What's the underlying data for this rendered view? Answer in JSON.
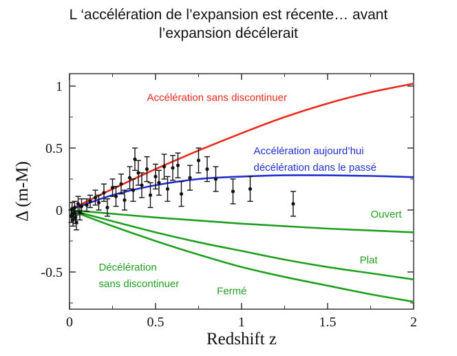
{
  "title_lines": [
    "L ‘accélération de l’expansion est récente… avant",
    "l’expansion décélerait"
  ],
  "chart_data": {
    "type": "scatter",
    "xlabel": "Redshift z",
    "ylabel": "Δ (m-M)",
    "xlim": [
      0,
      2
    ],
    "ylim": [
      -0.8,
      1.1
    ],
    "x_ticks": [
      0,
      0.5,
      1,
      1.5,
      2
    ],
    "x_tick_labels": [
      "0",
      "0.5",
      "1",
      "1.5",
      "2"
    ],
    "y_ticks": [
      1,
      0.5,
      0,
      -0.5
    ],
    "y_tick_labels": [
      "1",
      "0.5",
      "0",
      "-0.5"
    ],
    "grid": false,
    "legend": "none",
    "colors": {
      "red": "#e8291c",
      "blue": "#1f2fcf",
      "green": "#1f9e1f",
      "points": "#111111"
    },
    "series": [
      {
        "kind": "curve",
        "color": "red",
        "x": [
          0,
          0.25,
          0.5,
          0.75,
          1.0,
          1.25,
          1.5,
          1.75,
          2.0
        ],
        "y": [
          0,
          0.17,
          0.33,
          0.48,
          0.62,
          0.75,
          0.86,
          0.95,
          1.02
        ]
      },
      {
        "kind": "curve",
        "color": "blue",
        "x": [
          0,
          0.25,
          0.5,
          0.75,
          1.0,
          1.25,
          1.5,
          1.75,
          2.0
        ],
        "y": [
          0,
          0.12,
          0.2,
          0.25,
          0.27,
          0.28,
          0.28,
          0.275,
          0.265
        ]
      },
      {
        "kind": "curve",
        "color": "green",
        "x": [
          0,
          0.25,
          0.5,
          0.75,
          1.0,
          1.25,
          1.5,
          1.75,
          2.0
        ],
        "y": [
          0,
          -0.03,
          -0.06,
          -0.085,
          -0.11,
          -0.13,
          -0.15,
          -0.165,
          -0.18
        ]
      },
      {
        "kind": "curve",
        "color": "green",
        "x": [
          0,
          0.25,
          0.5,
          0.75,
          1.0,
          1.25,
          1.5,
          1.75,
          2.0
        ],
        "y": [
          0,
          -0.09,
          -0.18,
          -0.26,
          -0.33,
          -0.4,
          -0.46,
          -0.51,
          -0.56
        ]
      },
      {
        "kind": "curve",
        "color": "green",
        "x": [
          0,
          0.25,
          0.5,
          0.75,
          1.0,
          1.25,
          1.5,
          1.75,
          2.0
        ],
        "y": [
          0,
          -0.13,
          -0.25,
          -0.36,
          -0.46,
          -0.54,
          -0.61,
          -0.68,
          -0.74
        ]
      },
      {
        "kind": "points",
        "color": "points",
        "x": [
          0.01,
          0.015,
          0.02,
          0.025,
          0.03,
          0.035,
          0.04,
          0.05,
          0.06,
          0.07,
          0.1,
          0.12,
          0.15,
          0.17,
          0.2,
          0.22,
          0.25,
          0.27,
          0.3,
          0.32,
          0.35,
          0.37,
          0.38,
          0.4,
          0.42,
          0.45,
          0.47,
          0.5,
          0.52,
          0.55,
          0.57,
          0.6,
          0.63,
          0.65,
          0.7,
          0.75,
          0.8,
          0.85,
          0.95,
          1.05,
          1.3
        ],
        "y": [
          -0.05,
          0.01,
          -0.08,
          -0.03,
          0.02,
          -0.06,
          -0.1,
          0.05,
          -0.02,
          0.03,
          0.04,
          0.07,
          0.1,
          0.06,
          0.14,
          0.02,
          0.18,
          0.11,
          0.21,
          0.08,
          0.26,
          0.16,
          0.41,
          0.3,
          0.2,
          0.33,
          0.12,
          0.27,
          0.22,
          0.35,
          0.17,
          0.34,
          0.36,
          0.13,
          0.26,
          0.4,
          0.33,
          0.25,
          0.15,
          0.17,
          0.05
        ],
        "err": [
          0.05,
          0.05,
          0.05,
          0.05,
          0.05,
          0.05,
          0.06,
          0.06,
          0.06,
          0.06,
          0.05,
          0.05,
          0.06,
          0.06,
          0.07,
          0.07,
          0.07,
          0.08,
          0.08,
          0.08,
          0.09,
          0.09,
          0.09,
          0.1,
          0.1,
          0.1,
          0.1,
          0.1,
          0.1,
          0.1,
          0.1,
          0.1,
          0.1,
          0.1,
          0.1,
          0.1,
          0.1,
          0.1,
          0.1,
          0.1,
          0.1
        ]
      }
    ],
    "annotations": [
      {
        "lines": [
          "Accélération sans discontinuer"
        ],
        "color": "red",
        "x": 0.45,
        "y": 0.88,
        "anchor": "start"
      },
      {
        "lines": [
          "Accélération aujourd’hui",
          "décélération dans le passé"
        ],
        "color": "blue",
        "x": 1.07,
        "y": 0.45,
        "anchor": "start"
      },
      {
        "lines": [
          "Ouvert"
        ],
        "color": "green",
        "x": 1.93,
        "y": -0.06,
        "anchor": "end"
      },
      {
        "lines": [
          "Plat"
        ],
        "color": "green",
        "x": 1.79,
        "y": -0.43,
        "anchor": "end"
      },
      {
        "lines": [
          "Fermé"
        ],
        "color": "green",
        "x": 1.03,
        "y": -0.68,
        "anchor": "end"
      },
      {
        "lines": [
          "Décélération",
          "sans discontinuer"
        ],
        "color": "green",
        "x": 0.17,
        "y": -0.49,
        "anchor": "start"
      }
    ]
  }
}
